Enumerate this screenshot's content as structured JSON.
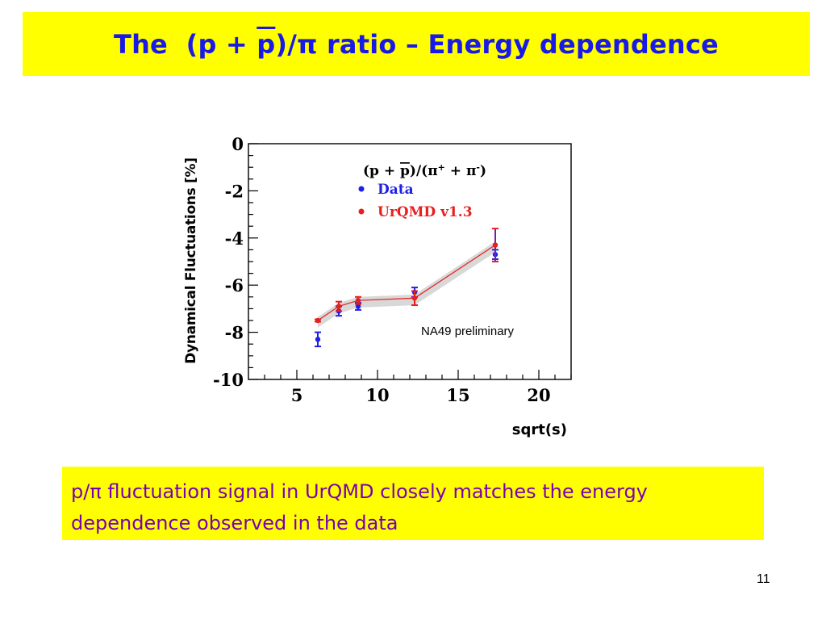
{
  "slide": {
    "title_prefix": "The  (p + ",
    "title_overbar": "p",
    "title_suffix": ")/π ratio – Energy dependence",
    "summary": "p/π fluctuation signal in  UrQMD closely matches the energy dependence observed in the data",
    "page_number": "11",
    "colors": {
      "title": "#1a1ae6",
      "highlight": "#ffff00",
      "summary": "#7a00b4"
    }
  },
  "chart_data": {
    "type": "scatter",
    "legend_title_prefix": "(p + ",
    "legend_title_overbar": "p",
    "legend_title_suffix": ")/(π",
    "legend_title_sup1": "+",
    "legend_title_mid": " + π",
    "legend_title_sup2": "-",
    "legend_title_end": ")",
    "annotation": "NA49 preliminary",
    "xlabel": "sqrt(s)",
    "ylabel": "Dynamical Fluctuations [%]",
    "xlim": [
      2.0,
      22.0
    ],
    "ylim": [
      -10,
      0
    ],
    "xticks": [
      5,
      10,
      15,
      20
    ],
    "yticks": [
      0,
      -2,
      -4,
      -6,
      -8,
      -10
    ],
    "legend_position": "top-right",
    "grid": false,
    "series": [
      {
        "name": "Data",
        "color": "#1f1fe6",
        "points": [
          {
            "x": 6.3,
            "y": -8.3,
            "err": 0.3
          },
          {
            "x": 7.6,
            "y": -7.1,
            "err": 0.2
          },
          {
            "x": 8.8,
            "y": -6.9,
            "err": 0.15
          },
          {
            "x": 12.3,
            "y": -6.3,
            "err": 0.2
          },
          {
            "x": 17.3,
            "y": -4.7,
            "err": 0.2
          }
        ]
      },
      {
        "name": "UrQMD v1.3",
        "color": "#e61f1f",
        "points": [
          {
            "x": 6.3,
            "y": -7.5,
            "err": 0.05
          },
          {
            "x": 7.6,
            "y": -6.9,
            "err": 0.2
          },
          {
            "x": 8.8,
            "y": -6.65,
            "err": 0.15
          },
          {
            "x": 12.3,
            "y": -6.55,
            "err": 0.3
          },
          {
            "x": 17.3,
            "y": -4.3,
            "err": 0.7
          }
        ]
      }
    ]
  }
}
